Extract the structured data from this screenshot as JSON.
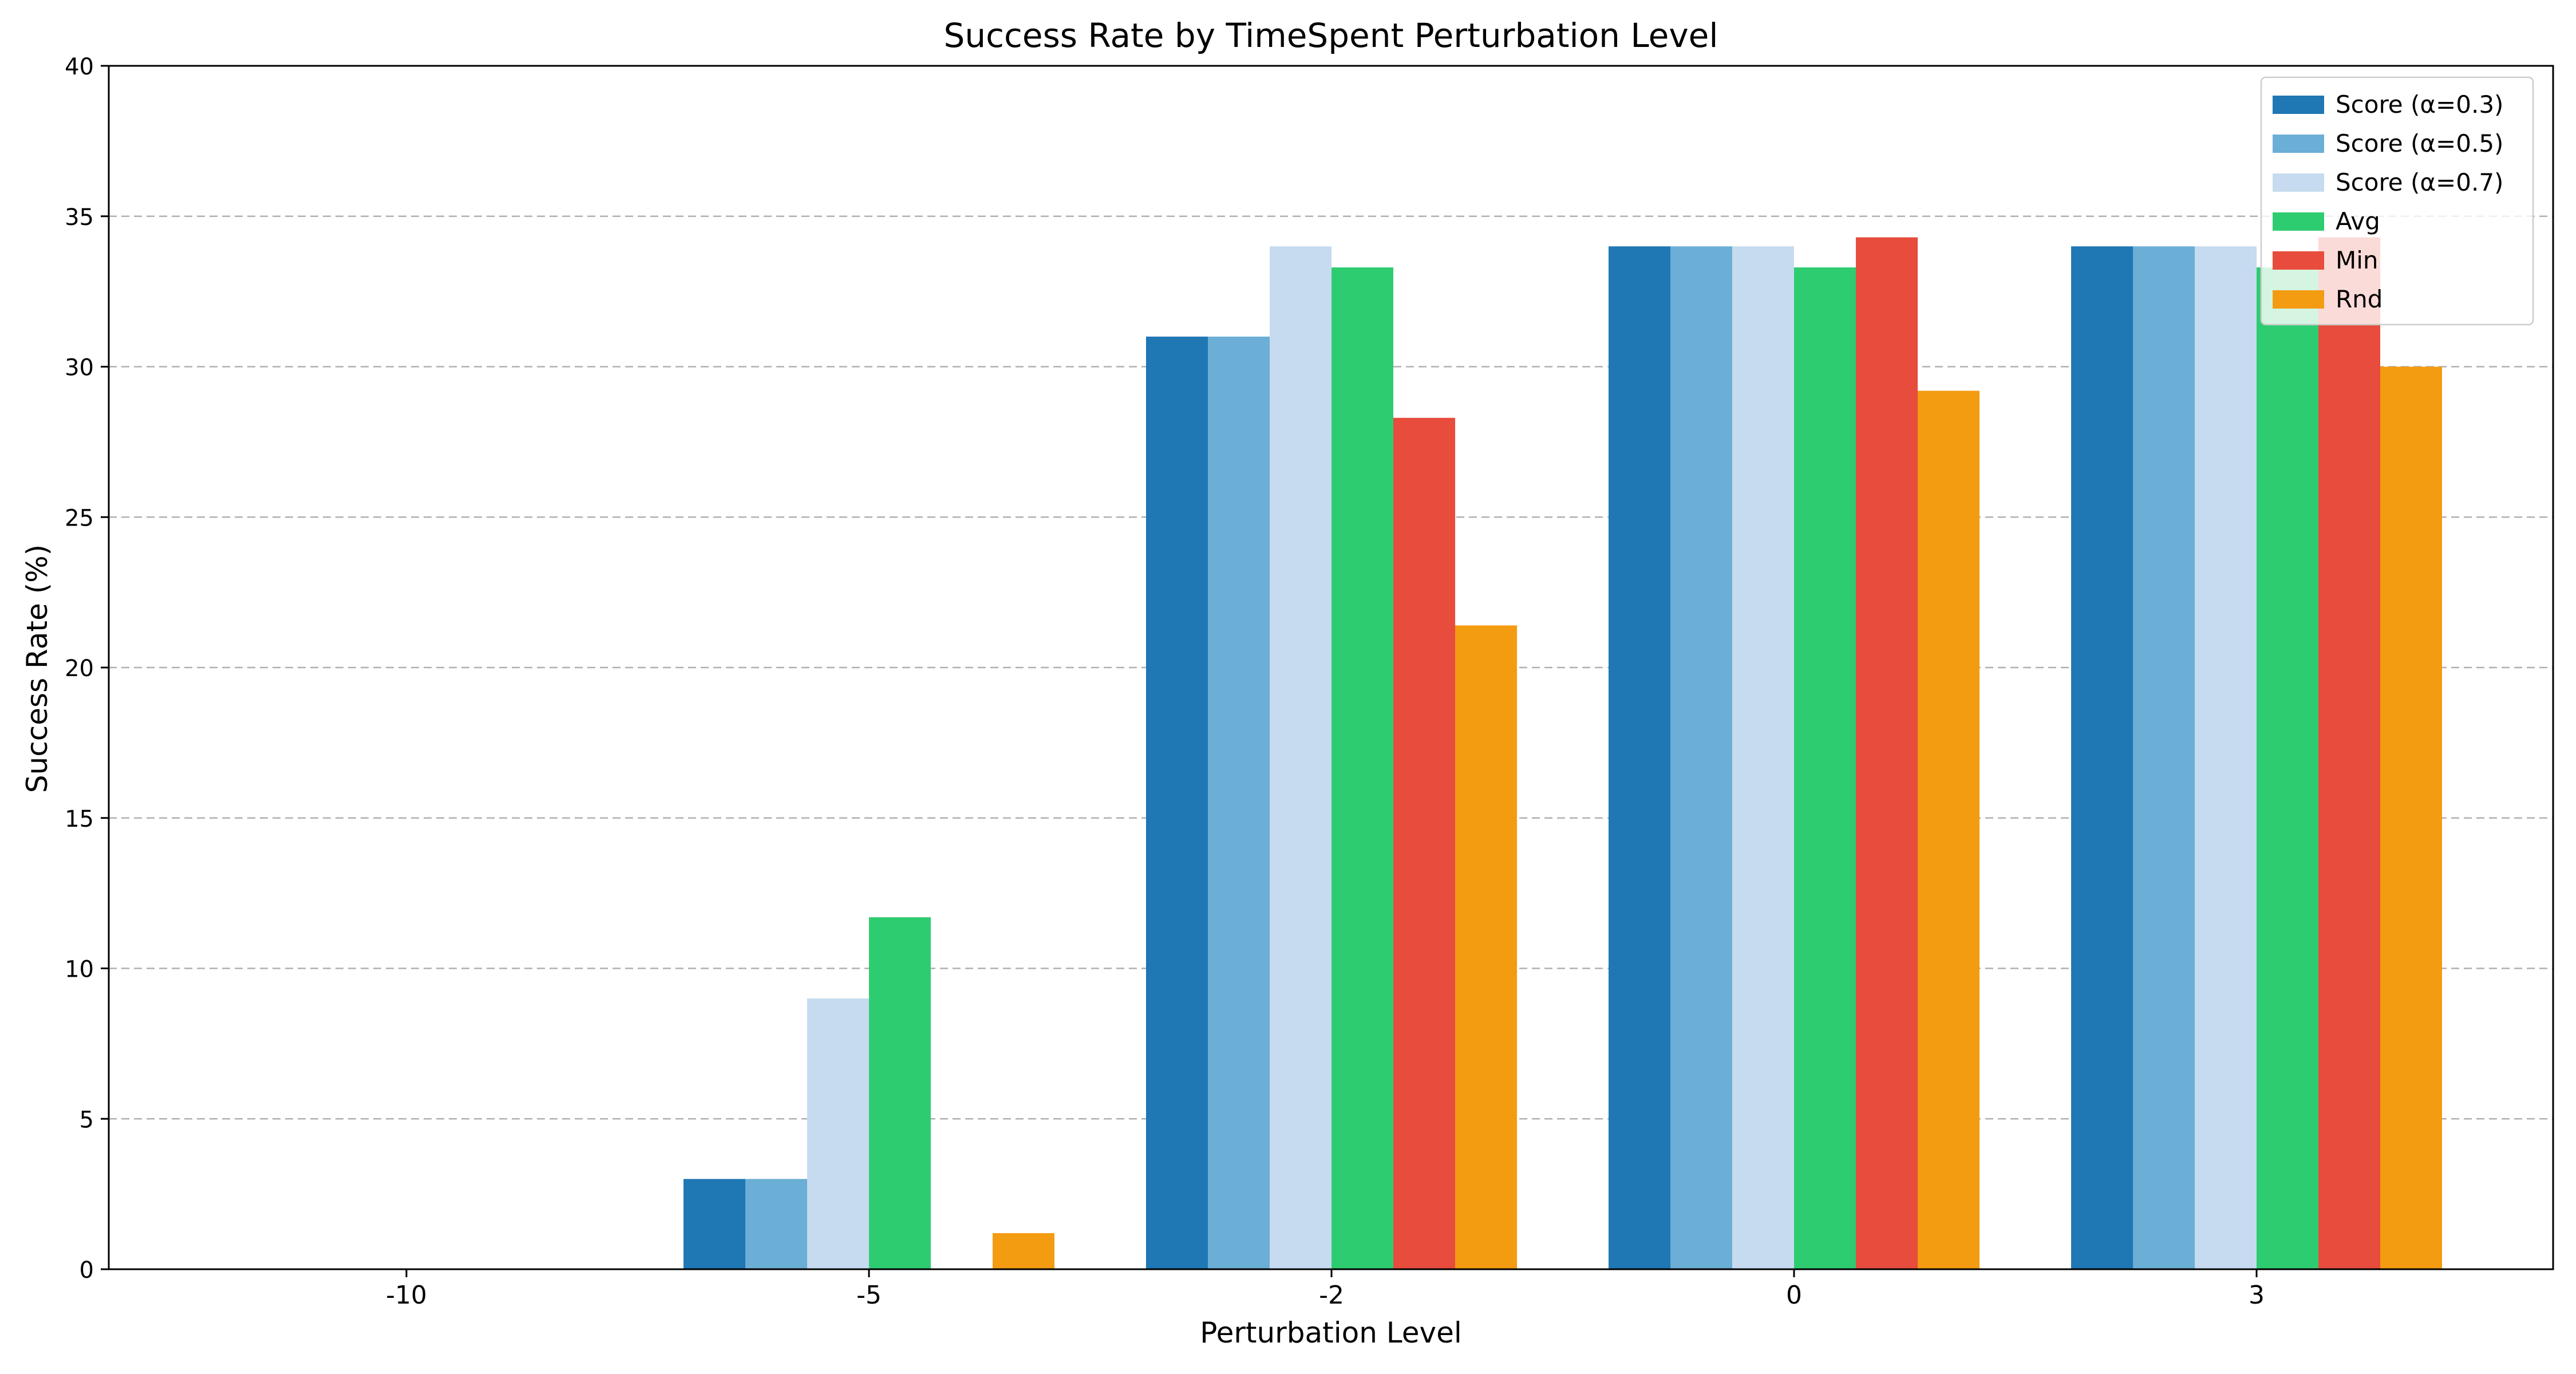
{
  "chart_data": {
    "type": "bar",
    "title": "Success Rate by TimeSpent Perturbation Level",
    "xlabel": "Perturbation Level",
    "ylabel": "Success Rate (%)",
    "categories": [
      "-10",
      "-5",
      "-2",
      "0",
      "3"
    ],
    "ylim": [
      0,
      40
    ],
    "yticks": [
      0,
      5,
      10,
      15,
      20,
      25,
      30,
      35,
      40
    ],
    "grid": "y-dashed",
    "legend_position": "top-right",
    "series": [
      {
        "name": "Score (α=0.3)",
        "color": "#1f77b4",
        "values": [
          0,
          3.0,
          31.0,
          34.0,
          34.0
        ]
      },
      {
        "name": "Score (α=0.5)",
        "color": "#6baed6",
        "values": [
          0,
          3.0,
          31.0,
          34.0,
          34.0
        ]
      },
      {
        "name": "Score (α=0.7)",
        "color": "#c6dbef",
        "values": [
          0,
          9.0,
          34.0,
          34.0,
          34.0
        ]
      },
      {
        "name": "Avg",
        "color": "#2ecc71",
        "values": [
          0,
          11.7,
          33.3,
          33.3,
          33.3
        ]
      },
      {
        "name": "Min",
        "color": "#e74c3c",
        "values": [
          0,
          0,
          28.3,
          34.3,
          34.3
        ]
      },
      {
        "name": "Rnd",
        "color": "#f39c12",
        "values": [
          0,
          1.2,
          21.4,
          29.2,
          30.0
        ]
      }
    ]
  }
}
